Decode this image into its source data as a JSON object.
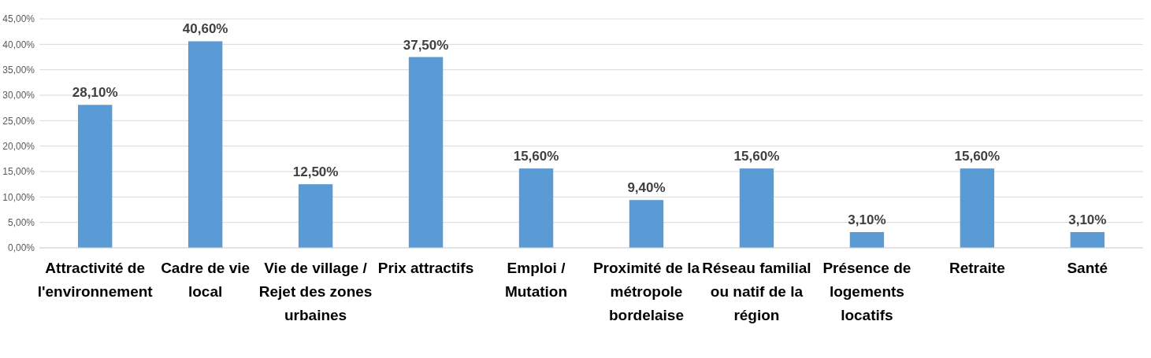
{
  "chart_data": {
    "type": "bar",
    "categories": [
      "Attractivité de l'environnement",
      "Cadre de vie local",
      "Vie de village / Rejet des zones urbaines",
      "Prix attractifs",
      "Emploi / Mutation",
      "Proximité de la métropole bordelaise",
      "Réseau familial ou natif de la région",
      "Présence de logements locatifs",
      "Retraite",
      "Santé"
    ],
    "values": [
      28.1,
      40.6,
      12.5,
      37.5,
      15.6,
      9.4,
      15.6,
      3.1,
      15.6,
      3.1
    ],
    "value_labels": [
      "28,10%",
      "40,60%",
      "12,50%",
      "37,50%",
      "15,60%",
      "9,40%",
      "15,60%",
      "3,10%",
      "15,60%",
      "3,10%"
    ],
    "color": "#5b9bd5",
    "ylim": [
      0,
      45
    ],
    "yticks": [
      {
        "value": 0,
        "label": "0,00%"
      },
      {
        "value": 5,
        "label": "5,00%"
      },
      {
        "value": 10,
        "label": "10,00%"
      },
      {
        "value": 15,
        "label": "15,00%"
      },
      {
        "value": 20,
        "label": "20,00%"
      },
      {
        "value": 25,
        "label": "25,00%"
      },
      {
        "value": 30,
        "label": "30,00%"
      },
      {
        "value": 35,
        "label": "35,00%"
      },
      {
        "value": 40,
        "label": "40,00%"
      },
      {
        "value": 45,
        "label": "45,00%"
      }
    ],
    "grid": "y"
  }
}
